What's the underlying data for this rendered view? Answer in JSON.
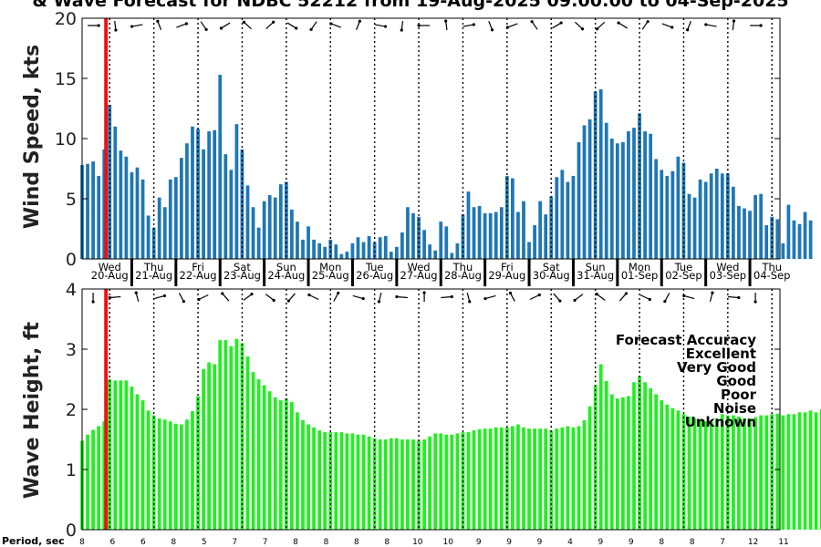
{
  "title": "& Wave Forecast for NDBC 52212 from 19-Aug-2025 09:00:00 to 04-Sep-2025",
  "colors": {
    "wind_bar": "#1f77b4",
    "wave_bar": "#22ee22",
    "now_line": "#ee1111"
  },
  "now_marker": {
    "x_hours": 13
  },
  "days": [
    {
      "dow": "Wed",
      "date": "20-Aug"
    },
    {
      "dow": "Thu",
      "date": "21-Aug"
    },
    {
      "dow": "Fri",
      "date": "22-Aug"
    },
    {
      "dow": "Sat",
      "date": "23-Aug"
    },
    {
      "dow": "Sun",
      "date": "24-Aug"
    },
    {
      "dow": "Mon",
      "date": "25-Aug"
    },
    {
      "dow": "Tue",
      "date": "26-Aug"
    },
    {
      "dow": "Wed",
      "date": "27-Aug"
    },
    {
      "dow": "Thu",
      "date": "28-Aug"
    },
    {
      "dow": "Fri",
      "date": "29-Aug"
    },
    {
      "dow": "Sat",
      "date": "30-Aug"
    },
    {
      "dow": "Sun",
      "date": "31-Aug"
    },
    {
      "dow": "Mon",
      "date": "01-Sep"
    },
    {
      "dow": "Tue",
      "date": "02-Sep"
    },
    {
      "dow": "Wed",
      "date": "03-Sep"
    },
    {
      "dow": "Thu",
      "date": "04-Sep"
    }
  ],
  "periods": {
    "label": "Period, sec",
    "values": [
      "8",
      "6",
      "6",
      "8",
      "5",
      "7",
      "7",
      "8",
      "8",
      "8",
      "8",
      "10",
      "10",
      "9",
      "9",
      "9",
      "4",
      "9",
      "9",
      "8",
      "8",
      "7",
      "12",
      "11"
    ]
  },
  "legend": {
    "title": "Forecast Accuracy",
    "items": [
      {
        "label": "Excellent",
        "color": "#22ee22"
      },
      {
        "label": "Very Good",
        "color": "#9933dd"
      },
      {
        "label": "Good",
        "color": "#0000dd"
      },
      {
        "label": "Poor",
        "color": "#eecc00"
      },
      {
        "label": "Noise",
        "color": "#ee1111"
      },
      {
        "label": "Unknown",
        "color": "#000000"
      }
    ]
  },
  "chart_data": [
    {
      "type": "bar",
      "ylabel": "Wind Speed, kts",
      "ylim": [
        0,
        20
      ],
      "yticks": [
        0,
        5,
        10,
        15,
        20
      ],
      "x_step_hours": 3,
      "x": "hours after 19-Aug-2025 09:00, 3-hourly",
      "values": [
        7.8,
        7.9,
        8.1,
        6.9,
        9.1,
        12.8,
        11.0,
        9.0,
        8.5,
        7.2,
        7.6,
        6.6,
        3.6,
        2.6,
        5.1,
        4.3,
        6.6,
        6.8,
        8.4,
        9.6,
        11.0,
        10.8,
        9.1,
        10.6,
        10.7,
        15.3,
        8.7,
        7.4,
        11.2,
        9.1,
        6.1,
        4.3,
        2.6,
        4.8,
        5.3,
        5.1,
        6.2,
        6.4,
        4.1,
        3.1,
        1.6,
        2.7,
        1.6,
        1.3,
        1.0,
        1.6,
        1.2,
        0.4,
        0.6,
        1.3,
        1.8,
        1.4,
        1.9,
        1.4,
        1.8,
        1.9,
        0.6,
        1.0,
        2.2,
        4.3,
        3.8,
        3.5,
        2.4,
        1.2,
        0.7,
        3.1,
        2.7,
        0.5,
        1.3,
        3.7,
        5.6,
        4.3,
        4.4,
        3.8,
        3.8,
        3.9,
        4.3,
        6.9,
        6.7,
        3.9,
        4.8,
        1.4,
        2.8,
        4.8,
        3.7,
        5.2,
        6.8,
        7.4,
        6.4,
        6.9,
        9.7,
        11.1,
        11.6,
        13.9,
        14.1,
        11.3,
        10.0,
        9.6,
        9.7,
        10.6,
        10.9,
        12.1,
        10.6,
        10.4,
        8.3,
        7.4,
        6.9,
        7.3,
        8.5,
        8.0,
        5.4,
        5.1,
        6.6,
        6.4,
        7.1,
        7.5,
        7.1,
        7.1,
        6.0,
        4.4,
        4.2,
        4.0,
        5.3,
        5.4,
        2.8,
        3.5,
        3.3,
        1.3,
        4.5,
        3.2,
        2.9,
        3.9,
        3.2
      ]
    },
    {
      "type": "bar",
      "ylabel": "Wave Height, ft",
      "ylim": [
        0,
        4
      ],
      "yticks": [
        0,
        1,
        2,
        3,
        4
      ],
      "x_step_hours": 3,
      "x": "hours after 19-Aug-2025 09:00, 3-hourly",
      "values": [
        1.48,
        1.58,
        1.66,
        1.72,
        1.8,
        2.5,
        2.48,
        2.48,
        2.48,
        2.38,
        2.25,
        2.15,
        1.98,
        1.9,
        1.85,
        1.83,
        1.8,
        1.76,
        1.75,
        1.83,
        1.97,
        2.22,
        2.67,
        2.78,
        2.75,
        3.15,
        3.15,
        3.05,
        3.17,
        3.1,
        2.88,
        2.62,
        2.5,
        2.4,
        2.3,
        2.2,
        2.15,
        2.18,
        2.12,
        1.95,
        1.82,
        1.75,
        1.7,
        1.65,
        1.62,
        1.62,
        1.62,
        1.62,
        1.6,
        1.6,
        1.58,
        1.58,
        1.55,
        1.52,
        1.5,
        1.5,
        1.52,
        1.52,
        1.5,
        1.5,
        1.5,
        1.48,
        1.5,
        1.55,
        1.6,
        1.6,
        1.58,
        1.58,
        1.6,
        1.62,
        1.62,
        1.65,
        1.67,
        1.68,
        1.68,
        1.7,
        1.7,
        1.7,
        1.72,
        1.75,
        1.7,
        1.68,
        1.68,
        1.68,
        1.68,
        1.65,
        1.68,
        1.7,
        1.72,
        1.7,
        1.72,
        1.82,
        2.05,
        2.4,
        2.75,
        2.47,
        2.25,
        2.18,
        2.2,
        2.22,
        2.45,
        2.55,
        2.45,
        2.35,
        2.25,
        2.15,
        2.08,
        2.02,
        1.98,
        1.92,
        1.88,
        1.85,
        1.82,
        1.8,
        1.8,
        1.85,
        1.92,
        1.9,
        1.9,
        1.88,
        1.85,
        1.85,
        1.87,
        1.9,
        1.9,
        1.92,
        1.93,
        1.9,
        1.92,
        1.92,
        1.95,
        1.95,
        1.98,
        1.95,
        2.0
      ]
    }
  ]
}
